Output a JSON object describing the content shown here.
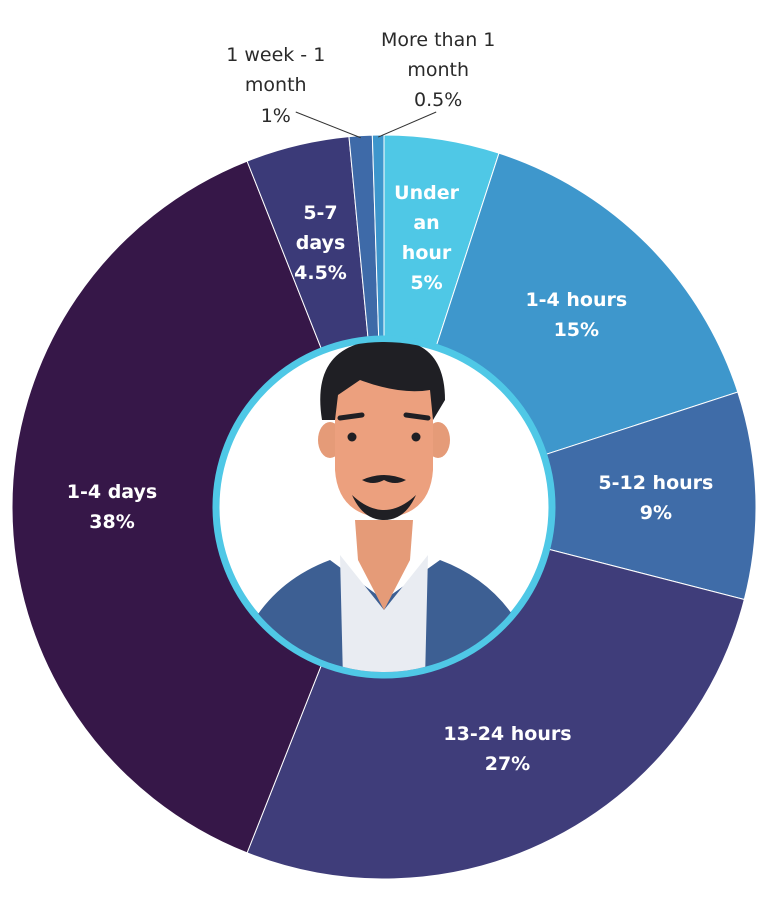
{
  "chart_data": {
    "type": "donut",
    "categories": [
      "Under an hour",
      "1-4 hours",
      "5-12 hours",
      "13-24 hours",
      "1-4 days",
      "5-7 days",
      "1 week - 1 month",
      "More than 1 month"
    ],
    "values": [
      5,
      15,
      9,
      27,
      38,
      4.5,
      1,
      0.5
    ],
    "value_labels": [
      "5%",
      "15%",
      "9%",
      "27%",
      "38%",
      "4.5%",
      "1%",
      "0.5%"
    ],
    "colors": [
      "#4fc8e6",
      "#3e97cc",
      "#3f6ca8",
      "#3f3d7a",
      "#361748",
      "#3b3a78",
      "#3e6aa8",
      "#3d96cc"
    ]
  }
}
